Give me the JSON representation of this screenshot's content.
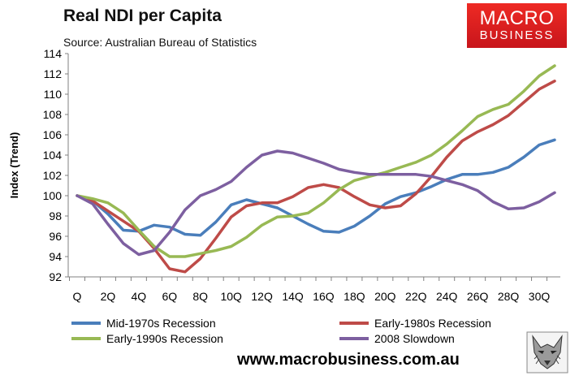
{
  "header": {
    "title": "Real NDI per Capita",
    "subtitle": "Source: Australian Bureau of Statistics"
  },
  "logo": {
    "line1": "MACRO",
    "line2": "BUSINESS"
  },
  "footer": {
    "url": "www.macrobusiness.com.au"
  },
  "chart_data": {
    "type": "line",
    "title": "Real NDI per Capita",
    "xlabel": "",
    "ylabel": "Index (Trend)",
    "ylim": [
      92,
      114
    ],
    "yticks": [
      92,
      94,
      96,
      98,
      100,
      102,
      104,
      106,
      108,
      110,
      112,
      114
    ],
    "x": [
      0,
      1,
      2,
      3,
      4,
      5,
      6,
      7,
      8,
      9,
      10,
      11,
      12,
      13,
      14,
      15,
      16,
      17,
      18,
      19,
      20,
      21,
      22,
      23,
      24,
      25,
      26,
      27,
      28,
      29,
      30,
      31
    ],
    "xtick_labels": [
      "Q",
      "2Q",
      "4Q",
      "6Q",
      "8Q",
      "10Q",
      "12Q",
      "14Q",
      "16Q",
      "18Q",
      "20Q",
      "22Q",
      "24Q",
      "26Q",
      "28Q",
      "30Q"
    ],
    "xtick_positions": [
      0,
      2,
      4,
      6,
      8,
      10,
      12,
      14,
      16,
      18,
      20,
      22,
      24,
      26,
      28,
      30
    ],
    "grid": false,
    "legend_position": "bottom",
    "series": [
      {
        "name": "Mid-1970s Recession",
        "color": "#4a7ebb",
        "values": [
          100,
          99.5,
          98.2,
          96.6,
          96.5,
          97.1,
          96.9,
          96.2,
          96.1,
          97.4,
          99.1,
          99.6,
          99.2,
          98.8,
          98,
          97.2,
          96.5,
          96.4,
          97,
          98,
          99.2,
          99.9,
          100.3,
          100.9,
          101.6,
          102.1,
          102.1,
          102.3,
          102.8,
          103.8,
          105,
          105.5
        ]
      },
      {
        "name": "Early-1980s Recession",
        "color": "#be4b48",
        "values": [
          100,
          99.5,
          98.5,
          97.5,
          96.5,
          94.8,
          92.8,
          92.5,
          93.8,
          95.8,
          97.9,
          99,
          99.3,
          99.3,
          99.9,
          100.8,
          101.1,
          100.8,
          99.9,
          99.1,
          98.8,
          99,
          100.2,
          101.9,
          103.8,
          105.4,
          106.3,
          107,
          107.9,
          109.2,
          110.5,
          111.3
        ]
      },
      {
        "name": "Early-1990s Recession",
        "color": "#98b954",
        "values": [
          100,
          99.7,
          99.3,
          98.3,
          96.6,
          95,
          94,
          94,
          94.3,
          94.6,
          95,
          95.9,
          97.1,
          97.9,
          98,
          98.3,
          99.3,
          100.6,
          101.5,
          101.9,
          102.3,
          102.8,
          103.3,
          104,
          105.1,
          106.4,
          107.8,
          108.5,
          109,
          110.3,
          111.8,
          112.8
        ]
      },
      {
        "name": "2008 Slowdown",
        "color": "#7d5fa0",
        "values": [
          100,
          99.2,
          97.2,
          95.3,
          94.2,
          94.6,
          96.4,
          98.6,
          100,
          100.6,
          101.4,
          102.8,
          104,
          104.4,
          104.2,
          103.7,
          103.2,
          102.6,
          102.3,
          102.1,
          102.1,
          102.1,
          102.1,
          101.9,
          101.5,
          101.1,
          100.5,
          99.4,
          98.7,
          98.8,
          99.4,
          100.3
        ]
      }
    ]
  }
}
